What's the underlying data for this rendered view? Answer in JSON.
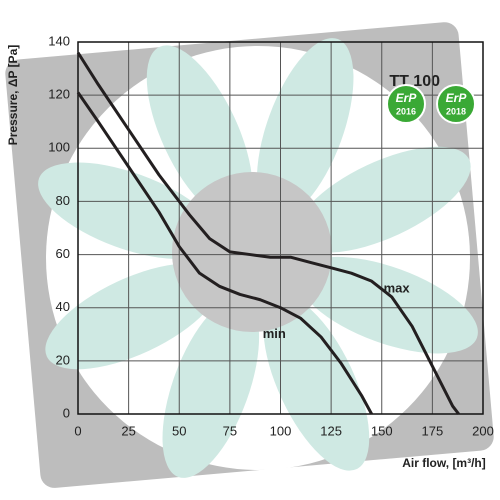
{
  "chart_data": {
    "type": "line",
    "title": "TT 100",
    "x_label": "Air flow, [m³/h]",
    "y_label": "Pressure, ΔP [Pa]",
    "xlim": [
      0,
      200
    ],
    "xticks": [
      0,
      25,
      50,
      75,
      100,
      125,
      150,
      175,
      200
    ],
    "ylim": [
      0,
      140
    ],
    "yticks": [
      0,
      20,
      40,
      60,
      80,
      100,
      120,
      140
    ],
    "grid": true,
    "series": [
      {
        "name": "max",
        "color": "#231f20",
        "x": [
          0,
          10,
          25,
          40,
          55,
          65,
          75,
          85,
          95,
          105,
          115,
          125,
          135,
          145,
          155,
          165,
          175,
          185,
          188
        ],
        "values": [
          136,
          124,
          107,
          90,
          75,
          66,
          61,
          60,
          59,
          59,
          57,
          55,
          53,
          50,
          44,
          33,
          18,
          3,
          0
        ]
      },
      {
        "name": "min",
        "color": "#231f20",
        "x": [
          0,
          10,
          25,
          40,
          50,
          60,
          70,
          80,
          90,
          100,
          110,
          120,
          130,
          140,
          145
        ],
        "values": [
          121,
          110,
          93,
          76,
          63,
          53,
          48,
          45,
          43,
          40,
          36,
          29,
          19,
          7,
          0
        ]
      }
    ],
    "badges": [
      {
        "label": "ErP",
        "year": "2016"
      },
      {
        "label": "ErP",
        "year": "2018"
      }
    ]
  }
}
